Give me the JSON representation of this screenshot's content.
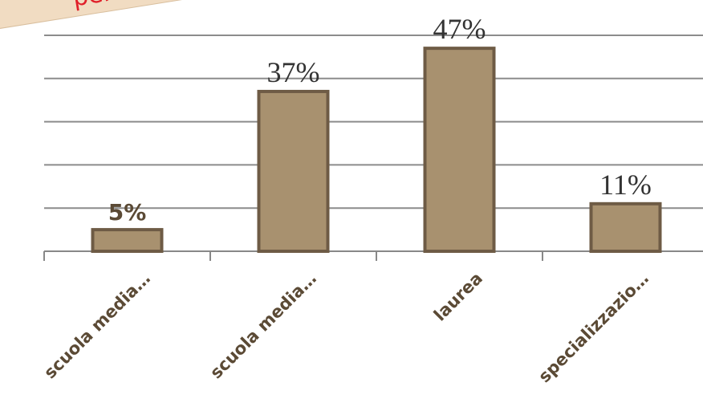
{
  "note": "per ti",
  "chart_data": {
    "type": "bar",
    "categories": [
      "scuola media…",
      "scuola media…",
      "laurea",
      "specializzazio…"
    ],
    "values": [
      5,
      37,
      47,
      11
    ],
    "value_labels": [
      "5%",
      "37%",
      "47%",
      "11%"
    ],
    "color": "#a8916f",
    "ylim": [
      0,
      50
    ],
    "yticks": [
      0,
      10,
      20,
      30,
      40,
      50
    ],
    "grid": true
  }
}
